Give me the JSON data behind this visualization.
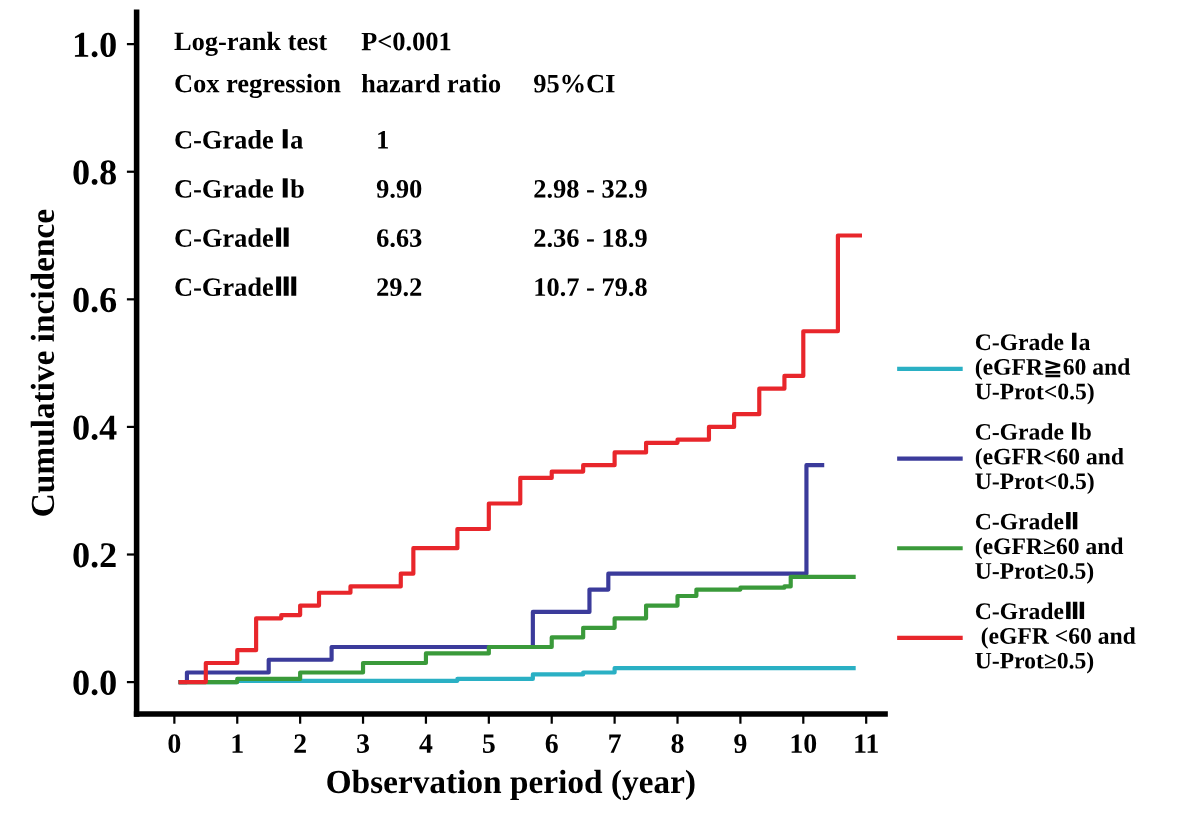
{
  "chart_data": {
    "type": "step",
    "xlabel": "Observation period (year)",
    "ylabel": "Cumulative incidence",
    "xlim": [
      -0.6,
      11.3
    ],
    "ylim": [
      -0.05,
      1.05
    ],
    "xticks": [
      0,
      1,
      2,
      3,
      4,
      5,
      6,
      7,
      8,
      9,
      10,
      11
    ],
    "yticks": [
      {
        "value": 0,
        "label": "0.0"
      },
      {
        "value": 0.2,
        "label": "0.2"
      },
      {
        "value": 0.4,
        "label": "0.4"
      },
      {
        "value": 0.6,
        "label": "0.6"
      },
      {
        "value": 0.8,
        "label": "0.8"
      },
      {
        "value": 1,
        "label": "1.0"
      }
    ],
    "grid": false,
    "legend": "right",
    "line_style": "solid",
    "annotations": [
      "Log-rank test",
      "P<0.001",
      "Cox regression",
      "hazard ratio",
      "95%CI",
      "C-Grade Ⅰa",
      "1",
      "C-Grade Ⅰb",
      "9.90",
      "2.98 - 32.9",
      "C-GradeⅡ",
      "6.63",
      "2.36 - 18.9",
      "C-GradeⅢ",
      "29.2",
      "10.7 - 79.8"
    ],
    "series": [
      {
        "name": "C-Grade Ⅰa\n(eGFR≧60 and\nU-Prot<0.5)",
        "color": "#2ab0c4",
        "x": [
          0.1,
          1,
          4.5,
          5.7,
          6.5,
          7,
          10.8
        ],
        "values": [
          0,
          0.002,
          0.005,
          0.012,
          0.015,
          0.022,
          0.022
        ]
      },
      {
        "name": "C-Grade Ⅰb\n(eGFR<60 and\nU-Prot<0.5)",
        "color": "#3b3b9b",
        "x": [
          0.1,
          0.2,
          1.5,
          2.5,
          5.7,
          6.6,
          6.9,
          10.05,
          10.3
        ],
        "values": [
          0,
          0.015,
          0.035,
          0.055,
          0.11,
          0.145,
          0.17,
          0.34,
          0.34
        ]
      },
      {
        "name": "C-GradeⅡ\n(eGFR≥60 and\nU-Prot≥0.5)",
        "color": "#3a9a3a",
        "x": [
          0.1,
          1,
          2,
          3,
          4,
          5,
          6,
          6.5,
          7,
          7.5,
          8,
          8.3,
          9,
          9.7,
          9.8,
          10.8
        ],
        "values": [
          0,
          0.005,
          0.015,
          0.03,
          0.045,
          0.055,
          0.07,
          0.085,
          0.1,
          0.12,
          0.135,
          0.145,
          0.148,
          0.15,
          0.165,
          0.165
        ]
      },
      {
        "name": "C-GradeⅢ\n (eGFR <60 and\nU-Prot≥0.5)",
        "color": "#e8262b",
        "x": [
          0.1,
          0.5,
          1,
          1.3,
          1.7,
          2,
          2.3,
          2.8,
          3.4,
          3.6,
          3.8,
          4.2,
          4.5,
          5,
          5.5,
          6,
          6.5,
          7,
          7.5,
          8,
          8.5,
          8.9,
          9.3,
          9.7,
          10,
          10.55,
          10.9
        ],
        "values": [
          0,
          0.03,
          0.05,
          0.1,
          0.105,
          0.12,
          0.14,
          0.15,
          0.15,
          0.17,
          0.21,
          0.21,
          0.24,
          0.28,
          0.32,
          0.33,
          0.34,
          0.36,
          0.375,
          0.38,
          0.4,
          0.42,
          0.46,
          0.48,
          0.55,
          0.7,
          0.7
        ]
      }
    ]
  }
}
